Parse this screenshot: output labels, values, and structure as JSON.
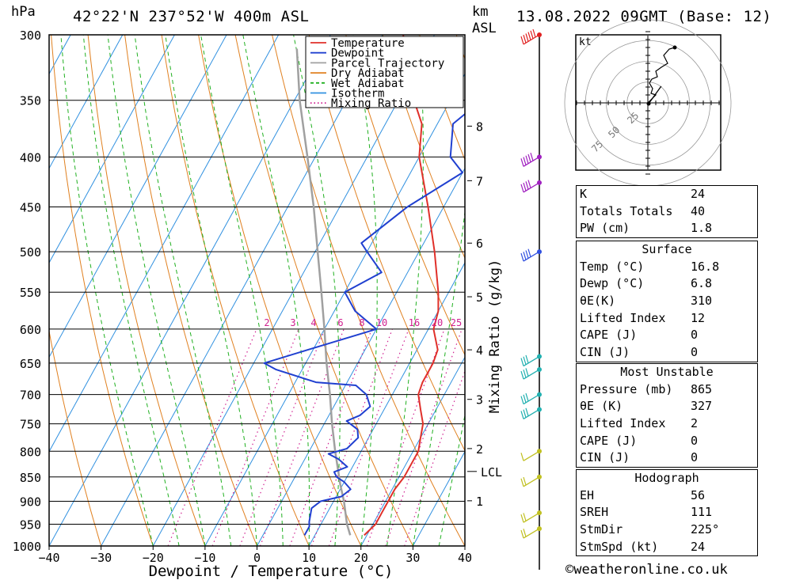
{
  "header": {
    "location": "42°22'N  237°52'W  400m  ASL",
    "datetime": "13.08.2022  09GMT  (Base: 12)",
    "left_unit": "hPa",
    "km_unit": "km",
    "asl_unit": "ASL",
    "kt_label": "kt"
  },
  "chart_data": {
    "type": "skew-t log-p",
    "xlabel": "Dewpoint / Temperature (°C)",
    "ylabel": "hPa",
    "secondary_ylabel": "Mixing Ratio (g/kg)",
    "xlim": [
      -40,
      40
    ],
    "ylim": [
      1000,
      300
    ],
    "pressure_levels": [
      300,
      350,
      400,
      450,
      500,
      550,
      600,
      650,
      700,
      750,
      800,
      850,
      900,
      950,
      1000
    ],
    "temp_ticks": [
      -40,
      -30,
      -20,
      -10,
      0,
      10,
      20,
      30,
      40
    ],
    "km_ticks": [
      {
        "label": "8",
        "p": 372
      },
      {
        "label": "7",
        "p": 423
      },
      {
        "label": "6",
        "p": 490
      },
      {
        "label": "5",
        "p": 556
      },
      {
        "label": "4",
        "p": 630
      },
      {
        "label": "3",
        "p": 708
      },
      {
        "label": "2",
        "p": 795
      },
      {
        "label": "1",
        "p": 899
      }
    ],
    "lcl": {
      "label": "LCL",
      "p": 839
    },
    "mixing_ratio_labels": [
      "2",
      "3",
      "4",
      "6",
      "8",
      "10",
      "16",
      "20",
      "25"
    ],
    "legend": [
      {
        "name": "Temperature",
        "color": "#e0302a",
        "style": "solid"
      },
      {
        "name": "Dewpoint",
        "color": "#2040d0",
        "style": "solid"
      },
      {
        "name": "Parcel Trajectory",
        "color": "#a0a0a0",
        "style": "solid"
      },
      {
        "name": "Dry Adiabat",
        "color": "#e08020",
        "style": "solid"
      },
      {
        "name": "Wet Adiabat",
        "color": "#20b020",
        "style": "dashed"
      },
      {
        "name": "Isotherm",
        "color": "#3090e0",
        "style": "solid"
      },
      {
        "name": "Mixing Ratio",
        "color": "#d02090",
        "style": "dotted"
      }
    ],
    "temperature": [
      [
        975,
        19.5
      ],
      [
        950,
        20.5
      ],
      [
        925,
        20.5
      ],
      [
        900,
        20.5
      ],
      [
        875,
        20.5
      ],
      [
        850,
        21
      ],
      [
        825,
        21
      ],
      [
        800,
        21
      ],
      [
        775,
        20
      ],
      [
        750,
        19
      ],
      [
        725,
        17
      ],
      [
        700,
        15
      ],
      [
        680,
        14.5
      ],
      [
        660,
        14.5
      ],
      [
        650,
        14.5
      ],
      [
        630,
        14
      ],
      [
        600,
        11
      ],
      [
        575,
        10
      ],
      [
        550,
        8
      ],
      [
        500,
        3
      ],
      [
        450,
        -3
      ],
      [
        400,
        -10
      ],
      [
        370,
        -13
      ],
      [
        350,
        -17
      ],
      [
        325,
        -22
      ],
      [
        300,
        -26
      ]
    ],
    "dewpoint": [
      [
        975,
        8
      ],
      [
        955,
        8
      ],
      [
        945,
        7.5
      ],
      [
        930,
        7
      ],
      [
        915,
        6.5
      ],
      [
        900,
        7.5
      ],
      [
        890,
        11
      ],
      [
        875,
        12
      ],
      [
        860,
        10
      ],
      [
        850,
        8
      ],
      [
        840,
        7
      ],
      [
        830,
        9
      ],
      [
        815,
        6.5
      ],
      [
        805,
        4
      ],
      [
        795,
        7
      ],
      [
        775,
        8
      ],
      [
        760,
        7
      ],
      [
        745,
        4
      ],
      [
        735,
        6
      ],
      [
        720,
        7
      ],
      [
        700,
        5
      ],
      [
        685,
        2
      ],
      [
        680,
        -6
      ],
      [
        660,
        -15
      ],
      [
        650,
        -18
      ],
      [
        630,
        -11
      ],
      [
        600,
        0
      ],
      [
        575,
        -6
      ],
      [
        550,
        -10
      ],
      [
        525,
        -5
      ],
      [
        500,
        -10
      ],
      [
        490,
        -12
      ],
      [
        450,
        -7
      ],
      [
        415,
        0
      ],
      [
        400,
        -4
      ],
      [
        370,
        -7
      ],
      [
        350,
        -4
      ],
      [
        330,
        -1
      ],
      [
        300,
        0
      ]
    ],
    "parcel": [
      [
        975,
        16.8
      ],
      [
        950,
        15
      ],
      [
        900,
        12
      ],
      [
        865,
        9.5
      ],
      [
        850,
        8.5
      ],
      [
        800,
        5
      ],
      [
        750,
        1.5
      ],
      [
        700,
        -2
      ],
      [
        650,
        -6
      ],
      [
        600,
        -10
      ],
      [
        550,
        -14.5
      ],
      [
        500,
        -19.5
      ],
      [
        450,
        -25
      ],
      [
        400,
        -31.5
      ],
      [
        350,
        -39
      ],
      [
        310,
        -45
      ]
    ],
    "wind_barbs": [
      {
        "p": 300,
        "speed_kt": 55,
        "color": "#e02020"
      },
      {
        "p": 400,
        "speed_kt": 45,
        "color": "#a020c0"
      },
      {
        "p": 425,
        "speed_kt": 40,
        "color": "#a020c0"
      },
      {
        "p": 500,
        "speed_kt": 35,
        "color": "#3050e0"
      },
      {
        "p": 640,
        "speed_kt": 30,
        "color": "#20b0b0"
      },
      {
        "p": 660,
        "speed_kt": 30,
        "color": "#20b0b0"
      },
      {
        "p": 700,
        "speed_kt": 30,
        "color": "#20b0b0"
      },
      {
        "p": 725,
        "speed_kt": 25,
        "color": "#20b0b0"
      },
      {
        "p": 800,
        "speed_kt": 10,
        "color": "#c0c020"
      },
      {
        "p": 850,
        "speed_kt": 15,
        "color": "#c0c020"
      },
      {
        "p": 925,
        "speed_kt": 20,
        "color": "#c0c020"
      },
      {
        "p": 960,
        "speed_kt": 20,
        "color": "#c0c020"
      }
    ],
    "hodograph": {
      "ring_labels": [
        "25",
        "50",
        "75"
      ],
      "points": [
        [
          0,
          0
        ],
        [
          1,
          1
        ],
        [
          0.4,
          1.2
        ],
        [
          0.6,
          1.8
        ],
        [
          0.2,
          2.5
        ],
        [
          0.5,
          3
        ],
        [
          1.2,
          3.3
        ],
        [
          1,
          4
        ],
        [
          1.7,
          4.5
        ],
        [
          2.5,
          5
        ],
        [
          2,
          6
        ],
        [
          2.7,
          6.8
        ],
        [
          3.4,
          7
        ]
      ],
      "storm_motion": [
        1.2,
        1.5
      ]
    }
  },
  "indices": {
    "general": [
      {
        "label": "K",
        "value": "24"
      },
      {
        "label": "Totals Totals",
        "value": "40"
      },
      {
        "label": "PW (cm)",
        "value": "1.8"
      }
    ],
    "surface": {
      "title": "Surface",
      "rows": [
        {
          "label": "Temp (°C)",
          "value": "16.8"
        },
        {
          "label": "Dewp (°C)",
          "value": "6.8"
        },
        {
          "label": "θE(K)",
          "value": "310"
        },
        {
          "label": "Lifted Index",
          "value": "12"
        },
        {
          "label": "CAPE (J)",
          "value": "0"
        },
        {
          "label": "CIN (J)",
          "value": "0"
        }
      ]
    },
    "most_unstable": {
      "title": "Most Unstable",
      "rows": [
        {
          "label": "Pressure (mb)",
          "value": "865"
        },
        {
          "label": "θE (K)",
          "value": "327"
        },
        {
          "label": "Lifted Index",
          "value": "2"
        },
        {
          "label": "CAPE (J)",
          "value": "0"
        },
        {
          "label": "CIN (J)",
          "value": "0"
        }
      ]
    },
    "hodograph": {
      "title": "Hodograph",
      "rows": [
        {
          "label": "EH",
          "value": "56"
        },
        {
          "label": "SREH",
          "value": "111"
        },
        {
          "label": "StmDir",
          "value": "225°"
        },
        {
          "label": "StmSpd (kt)",
          "value": "24"
        }
      ]
    }
  },
  "footer": {
    "copyright": "©weatheronline.co.uk"
  }
}
